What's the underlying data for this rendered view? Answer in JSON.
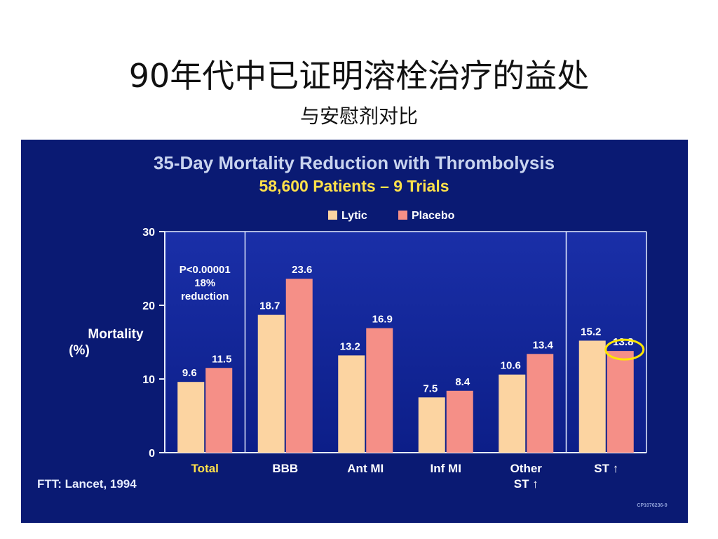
{
  "slide": {
    "title": "90年代中已证明溶栓治疗的益处",
    "subtitle": "与安慰剂对比"
  },
  "colors": {
    "panel_bg": "#0a1a73",
    "title_text": "#c9d4ef",
    "subtitle_text": "#ffe14a",
    "lytic": "#fcd4a1",
    "placebo": "#f58f87",
    "axis": "#e6ecff",
    "highlight_circle": "#ffe600",
    "total_label": "#ffe14a"
  },
  "chart_data": {
    "type": "bar",
    "title": "35-Day Mortality Reduction with Thrombolysis",
    "subtitle": "58,600 Patients – 9 Trials",
    "ylabel_line1": "Mortality",
    "ylabel_line2": "(%)",
    "ylim": [
      0,
      30
    ],
    "yticks": [
      "0",
      "10",
      "20",
      "30"
    ],
    "yticks_values": [
      0,
      10,
      20,
      30
    ],
    "categories": [
      {
        "line1": "Total",
        "line2": ""
      },
      {
        "line1": "BBB",
        "line2": ""
      },
      {
        "line1": "Ant MI",
        "line2": ""
      },
      {
        "line1": "Inf MI",
        "line2": ""
      },
      {
        "line1": "Other",
        "line2": "ST ↑"
      },
      {
        "line1": "ST ↑",
        "line2": ""
      }
    ],
    "series": [
      {
        "name": "Lytic",
        "values": [
          9.6,
          18.7,
          13.2,
          7.5,
          10.6,
          15.2
        ],
        "labels": [
          "9.6",
          "18.7",
          "13.2",
          "7.5",
          "10.6",
          "15.2"
        ]
      },
      {
        "name": "Placebo",
        "values": [
          11.5,
          23.6,
          16.9,
          8.4,
          13.4,
          13.8
        ],
        "labels": [
          "11.5",
          "23.6",
          "16.9",
          "8.4",
          "13.4",
          "13.8"
        ]
      }
    ],
    "legend_position": "top",
    "highlight": {
      "series": "Placebo",
      "category": "ST ↑",
      "shape": "circle"
    },
    "annotation_lines": [
      "P<0.00001",
      "18%",
      "reduction"
    ],
    "source": "FTT:  Lancet, 1994",
    "code": "CP1076236-9"
  }
}
